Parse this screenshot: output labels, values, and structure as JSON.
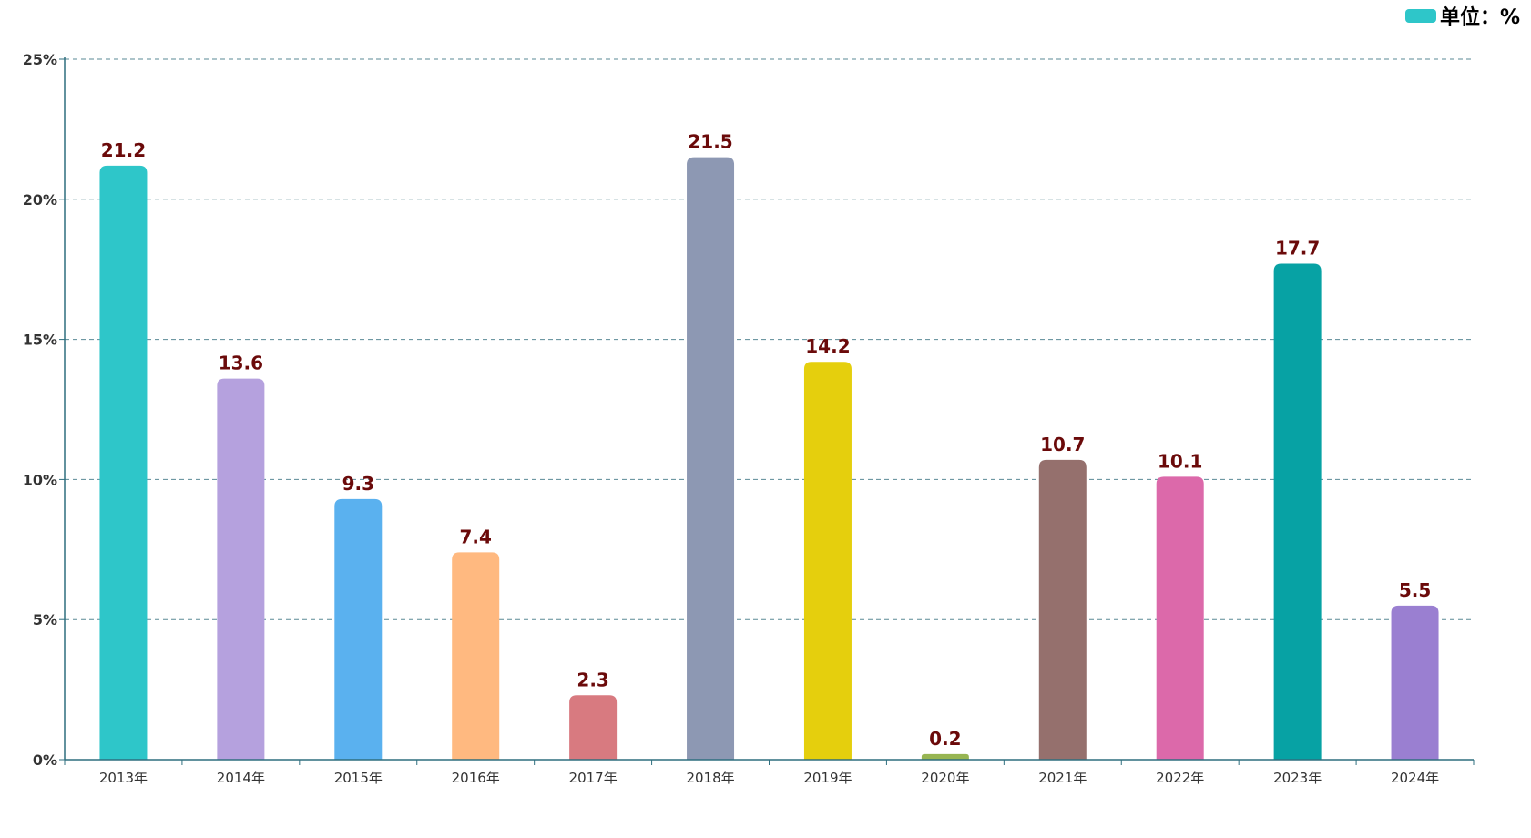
{
  "chart_data": {
    "type": "bar",
    "title": "",
    "xlabel": "",
    "ylabel": "",
    "legend": {
      "label": "单位：%",
      "color": "#2ec6c9",
      "position": "top-right"
    },
    "categories": [
      "2013年",
      "2014年",
      "2015年",
      "2016年",
      "2017年",
      "2018年",
      "2019年",
      "2020年",
      "2021年",
      "2022年",
      "2023年",
      "2024年"
    ],
    "values": [
      21.2,
      13.6,
      9.3,
      7.4,
      2.3,
      21.5,
      14.2,
      0.2,
      10.7,
      10.1,
      17.7,
      5.5
    ],
    "value_labels": [
      "21.2",
      "13.6",
      "9.3",
      "7.4",
      "2.3",
      "21.5",
      "14.2",
      "0.2",
      "10.7",
      "10.1",
      "17.7",
      "5.5"
    ],
    "colors": [
      "#2ec6c9",
      "#b5a1de",
      "#5ab1ef",
      "#ffb980",
      "#d87a80",
      "#8d98b3",
      "#e5cf0d",
      "#97b552",
      "#95706d",
      "#dc69aa",
      "#07a2a4",
      "#9a7fd1"
    ],
    "ylim": [
      0,
      25
    ],
    "yticks": [
      0,
      5,
      10,
      15,
      20,
      25
    ],
    "ytick_labels": [
      "0%",
      "5%",
      "10%",
      "15%",
      "20%",
      "25%"
    ],
    "grid": true,
    "label_color": "#6b0a0a",
    "axis_color": "#2f6f7f",
    "grid_color": "#5a8a96"
  }
}
